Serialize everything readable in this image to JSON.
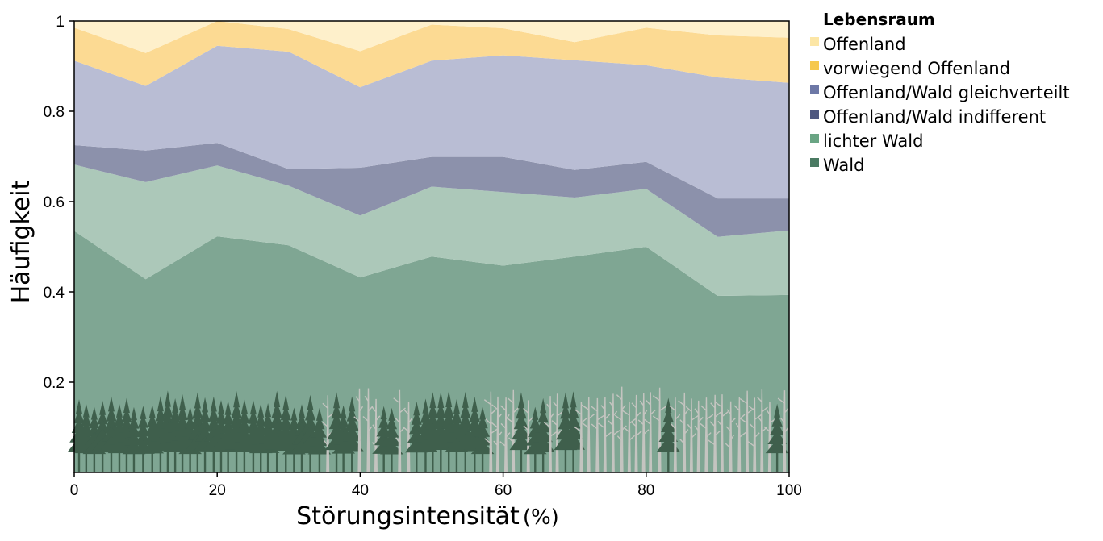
{
  "chart_data": {
    "type": "area",
    "stacked": true,
    "xlabel": "Störungsintensität",
    "xlabel_unit": "(%)",
    "ylabel": "Häufigkeit",
    "x": [
      0,
      10,
      20,
      30,
      40,
      50,
      60,
      70,
      80,
      90,
      100
    ],
    "xlim": [
      0,
      100
    ],
    "ylim": [
      0,
      1
    ],
    "x_ticks": [
      "0",
      "20",
      "40",
      "60",
      "80",
      "100"
    ],
    "y_ticks": [
      "0.2",
      "0.4",
      "0.6",
      "0.8",
      "1"
    ],
    "legend": {
      "title": "Lebensraum",
      "position": "right"
    },
    "series": [
      {
        "name": "Wald",
        "color": "#7fa693",
        "legend_color": "#4a7a62",
        "values": [
          0.535,
          0.428,
          0.523,
          0.503,
          0.432,
          0.478,
          0.458,
          0.478,
          0.5,
          0.391,
          0.393
        ]
      },
      {
        "name": "lichter Wald",
        "color": "#acc8b9",
        "legend_color": "#6aa584",
        "values": [
          0.147,
          0.215,
          0.157,
          0.132,
          0.137,
          0.155,
          0.163,
          0.131,
          0.128,
          0.131,
          0.143
        ]
      },
      {
        "name": "Offenland/Wald indifferent",
        "color": "#8c91ab",
        "legend_color": "#4f5880",
        "values": [
          0.043,
          0.07,
          0.05,
          0.037,
          0.106,
          0.066,
          0.078,
          0.061,
          0.06,
          0.085,
          0.071
        ]
      },
      {
        "name": "Offenland/Wald gleichverteilt",
        "color": "#b9bdd4",
        "legend_color": "#6d78a6",
        "values": [
          0.187,
          0.143,
          0.215,
          0.26,
          0.178,
          0.213,
          0.225,
          0.243,
          0.214,
          0.268,
          0.256
        ]
      },
      {
        "name": "vorwiegend Offenland",
        "color": "#fcda93",
        "legend_color": "#f6c84e",
        "values": [
          0.073,
          0.073,
          0.055,
          0.05,
          0.08,
          0.08,
          0.06,
          0.04,
          0.083,
          0.093,
          0.1
        ]
      },
      {
        "name": "Offenland",
        "color": "#fef0cb",
        "legend_color": "#fce6a6",
        "values": [
          0.015,
          0.071,
          0.0,
          0.018,
          0.067,
          0.008,
          0.016,
          0.047,
          0.015,
          0.032,
          0.037
        ]
      }
    ]
  },
  "illustration": {
    "description_icon": "forest-silhouette-icon",
    "healthy_tree_color": "#3f5f4c",
    "dead_tree_color": "#c4c4c0"
  }
}
